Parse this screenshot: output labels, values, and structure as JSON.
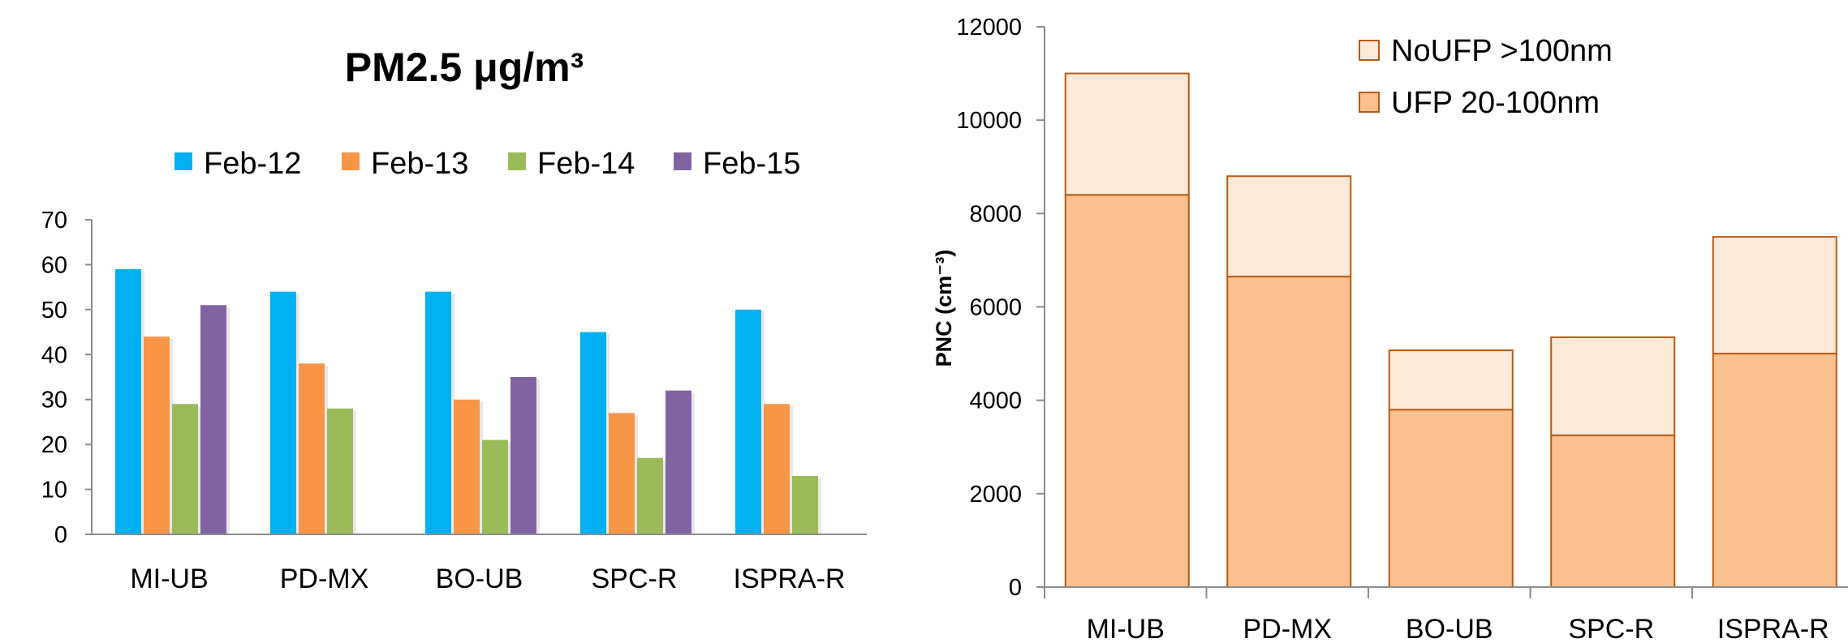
{
  "chart_data": [
    {
      "type": "bar",
      "title": "PM2.5 μg/m³",
      "xlabel": "",
      "ylabel": "",
      "ylim": [
        0,
        70
      ],
      "yticks": [
        0,
        10,
        20,
        30,
        40,
        50,
        60,
        70
      ],
      "grid": false,
      "legend": "top",
      "categories": [
        "MI-UB",
        "PD-MX",
        "BO-UB",
        "SPC-R",
        "ISPRA-R"
      ],
      "series": [
        {
          "name": "Feb-12",
          "color": "#00B0F0",
          "values": [
            59,
            54,
            54,
            45,
            50
          ]
        },
        {
          "name": "Feb-13",
          "color": "#F79646",
          "values": [
            44,
            38,
            30,
            27,
            29
          ]
        },
        {
          "name": "Feb-14",
          "color": "#9BBB59",
          "values": [
            29,
            28,
            21,
            17,
            13
          ]
        },
        {
          "name": "Feb-15",
          "color": "#8064A2",
          "values": [
            51,
            null,
            35,
            32,
            null
          ]
        }
      ]
    },
    {
      "type": "bar",
      "stacked": true,
      "title": "",
      "xlabel": "",
      "ylabel": "PNC (cm⁻³)",
      "ylim": [
        0,
        12000
      ],
      "yticks": [
        0,
        2000,
        4000,
        6000,
        8000,
        10000,
        12000
      ],
      "grid": false,
      "legend": "top-right",
      "categories": [
        "MI-UB",
        "PD-MX",
        "BO-UB",
        "SPC-R",
        "ISPRA-R"
      ],
      "series": [
        {
          "name": "UFP 20-100nm",
          "color": "#FAC090",
          "edge": "#B85A12",
          "values": [
            8400,
            6650,
            3800,
            3250,
            5000
          ]
        },
        {
          "name": "NoUFP >100nm",
          "color": "#FDE9D9",
          "edge": "#B85A12",
          "values": [
            2600,
            2150,
            1270,
            2100,
            2500
          ]
        }
      ]
    }
  ]
}
